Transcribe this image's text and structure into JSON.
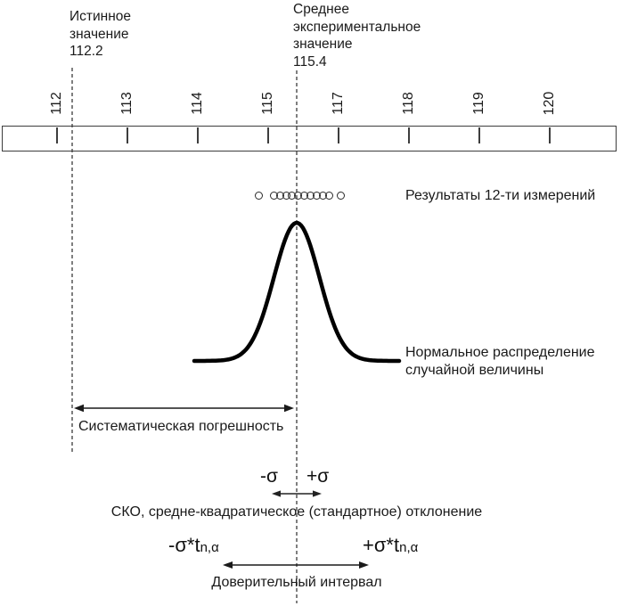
{
  "colors": {
    "ink": "#1a1a1a",
    "curve": "#000000",
    "dashed_line": "#7f7f7f",
    "ruler_border": "#3d3d3d"
  },
  "true_value": {
    "lines": [
      "Истинное",
      "значение",
      "112.2"
    ]
  },
  "mean_value": {
    "lines": [
      "Среднее",
      "экспериментальное",
      "значение",
      "115.4"
    ]
  },
  "ruler": {
    "tick_labels": [
      "112",
      "113",
      "114",
      "115",
      "117",
      "118",
      "119",
      "120"
    ]
  },
  "measurements": {
    "count": 12,
    "label": "Результаты 12-ти измерений"
  },
  "distribution": {
    "label_line1": "Нормальное распределение",
    "label_line2": "случайной величины"
  },
  "systematic_error": {
    "label": "Систематическая погрешность"
  },
  "sigma": {
    "minus": "-σ",
    "plus": "+σ",
    "label": "СКО, средне-квадратическое (стандартное) отклонение"
  },
  "confidence": {
    "minus_main": "-σ*t",
    "plus_main": "+σ*t",
    "subscript": "n,α",
    "label": "Доверительный интервал"
  }
}
